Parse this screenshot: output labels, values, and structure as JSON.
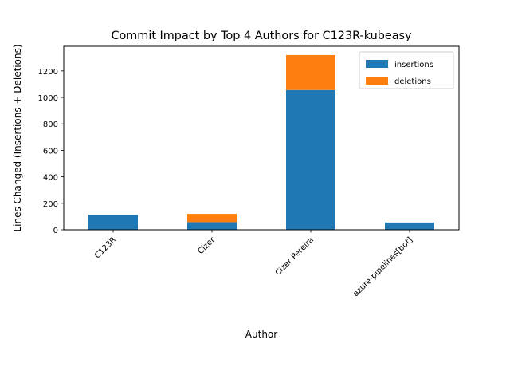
{
  "chart_data": {
    "type": "bar",
    "stacked": true,
    "title": "Commit Impact by Top 4 Authors for C123R-kubeasy",
    "xlabel": "Author",
    "ylabel": "Lines Changed (Insertions + Deletions)",
    "categories": [
      "C123R",
      "Cizer",
      "Cizer Pereira",
      "azure-pipelines[bot]"
    ],
    "series": [
      {
        "name": "insertions",
        "color": "#1f77b4",
        "values": [
          113,
          58,
          1056,
          55
        ]
      },
      {
        "name": "deletions",
        "color": "#ff7f0e",
        "values": [
          0,
          62,
          264,
          0
        ]
      }
    ],
    "ylim": [
      0,
      1386
    ],
    "yticks": [
      0,
      200,
      400,
      600,
      800,
      1000,
      1200
    ],
    "grid": false,
    "legend_position": "top-right"
  }
}
